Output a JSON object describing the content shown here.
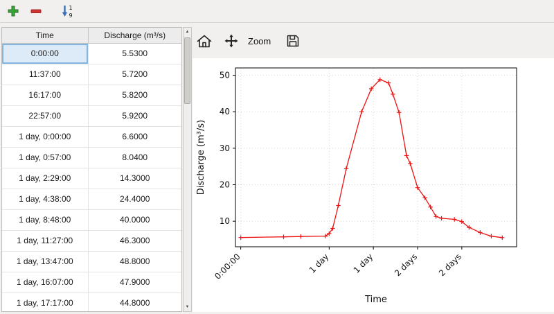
{
  "toolbar_main": {
    "sort_top": "1",
    "sort_bottom": "9"
  },
  "table": {
    "columns": [
      "Time",
      "Discharge (m³/s)"
    ],
    "selected": {
      "row": 0,
      "col": 0
    },
    "rows": [
      [
        "0:00:00",
        "5.5300"
      ],
      [
        "11:37:00",
        "5.7200"
      ],
      [
        "16:17:00",
        "5.8200"
      ],
      [
        "22:57:00",
        "5.9200"
      ],
      [
        "1 day, 0:00:00",
        "6.6000"
      ],
      [
        "1 day, 0:57:00",
        "8.0400"
      ],
      [
        "1 day, 2:29:00",
        "14.3000"
      ],
      [
        "1 day, 4:38:00",
        "24.4000"
      ],
      [
        "1 day, 8:48:00",
        "40.0000"
      ],
      [
        "1 day, 11:27:00",
        "46.3000"
      ],
      [
        "1 day, 13:47:00",
        "48.8000"
      ],
      [
        "1 day, 16:07:00",
        "47.9000"
      ],
      [
        "1 day, 17:17:00",
        "44.8000"
      ]
    ]
  },
  "chart_toolbar": {
    "zoom_label": "Zoom"
  },
  "chart_data": {
    "type": "line",
    "title": "",
    "xlabel": "Time",
    "ylabel": "Discharge (m³/s)",
    "line_color": "#ee1111",
    "marker": "+",
    "grid": true,
    "legend": "none",
    "xlim_days": [
      -0.06,
      3.12
    ],
    "ylim": [
      3,
      52
    ],
    "x_ticks": [
      {
        "pos_days": 0.0,
        "label": "0:00:00"
      },
      {
        "pos_days": 1.0,
        "label": "1 day"
      },
      {
        "pos_days": 1.5,
        "label": "1 day"
      },
      {
        "pos_days": 2.0,
        "label": "2 days"
      },
      {
        "pos_days": 2.5,
        "label": "2 days"
      }
    ],
    "y_ticks": [
      10,
      20,
      30,
      40,
      50
    ],
    "points_days_value": [
      [
        0.0,
        5.53
      ],
      [
        0.484,
        5.72
      ],
      [
        0.6785,
        5.82
      ],
      [
        0.9563,
        5.92
      ],
      [
        1.0,
        6.6
      ],
      [
        1.0396,
        8.04
      ],
      [
        1.1035,
        14.3
      ],
      [
        1.1931,
        24.4
      ],
      [
        1.3667,
        40.0
      ],
      [
        1.4771,
        46.3
      ],
      [
        1.5743,
        48.8
      ],
      [
        1.6715,
        47.9
      ],
      [
        1.7201,
        44.8
      ],
      [
        1.79,
        39.8
      ],
      [
        1.875,
        28.0
      ],
      [
        1.917,
        25.8
      ],
      [
        2.0,
        19.2
      ],
      [
        2.083,
        16.4
      ],
      [
        2.146,
        13.9
      ],
      [
        2.208,
        11.3
      ],
      [
        2.271,
        10.8
      ],
      [
        2.417,
        10.5
      ],
      [
        2.5,
        9.9
      ],
      [
        2.583,
        8.3
      ],
      [
        2.708,
        6.9
      ],
      [
        2.833,
        5.9
      ],
      [
        2.958,
        5.5
      ]
    ]
  },
  "colors": {
    "add_green": "#3aa33a",
    "remove_red": "#d23333",
    "sort_blue": "#3a6fb5",
    "selection_bg": "#ddeaf7",
    "selection_border": "#84b4e0",
    "series_red": "#ee1111",
    "window_bg": "#f1f0ee"
  }
}
